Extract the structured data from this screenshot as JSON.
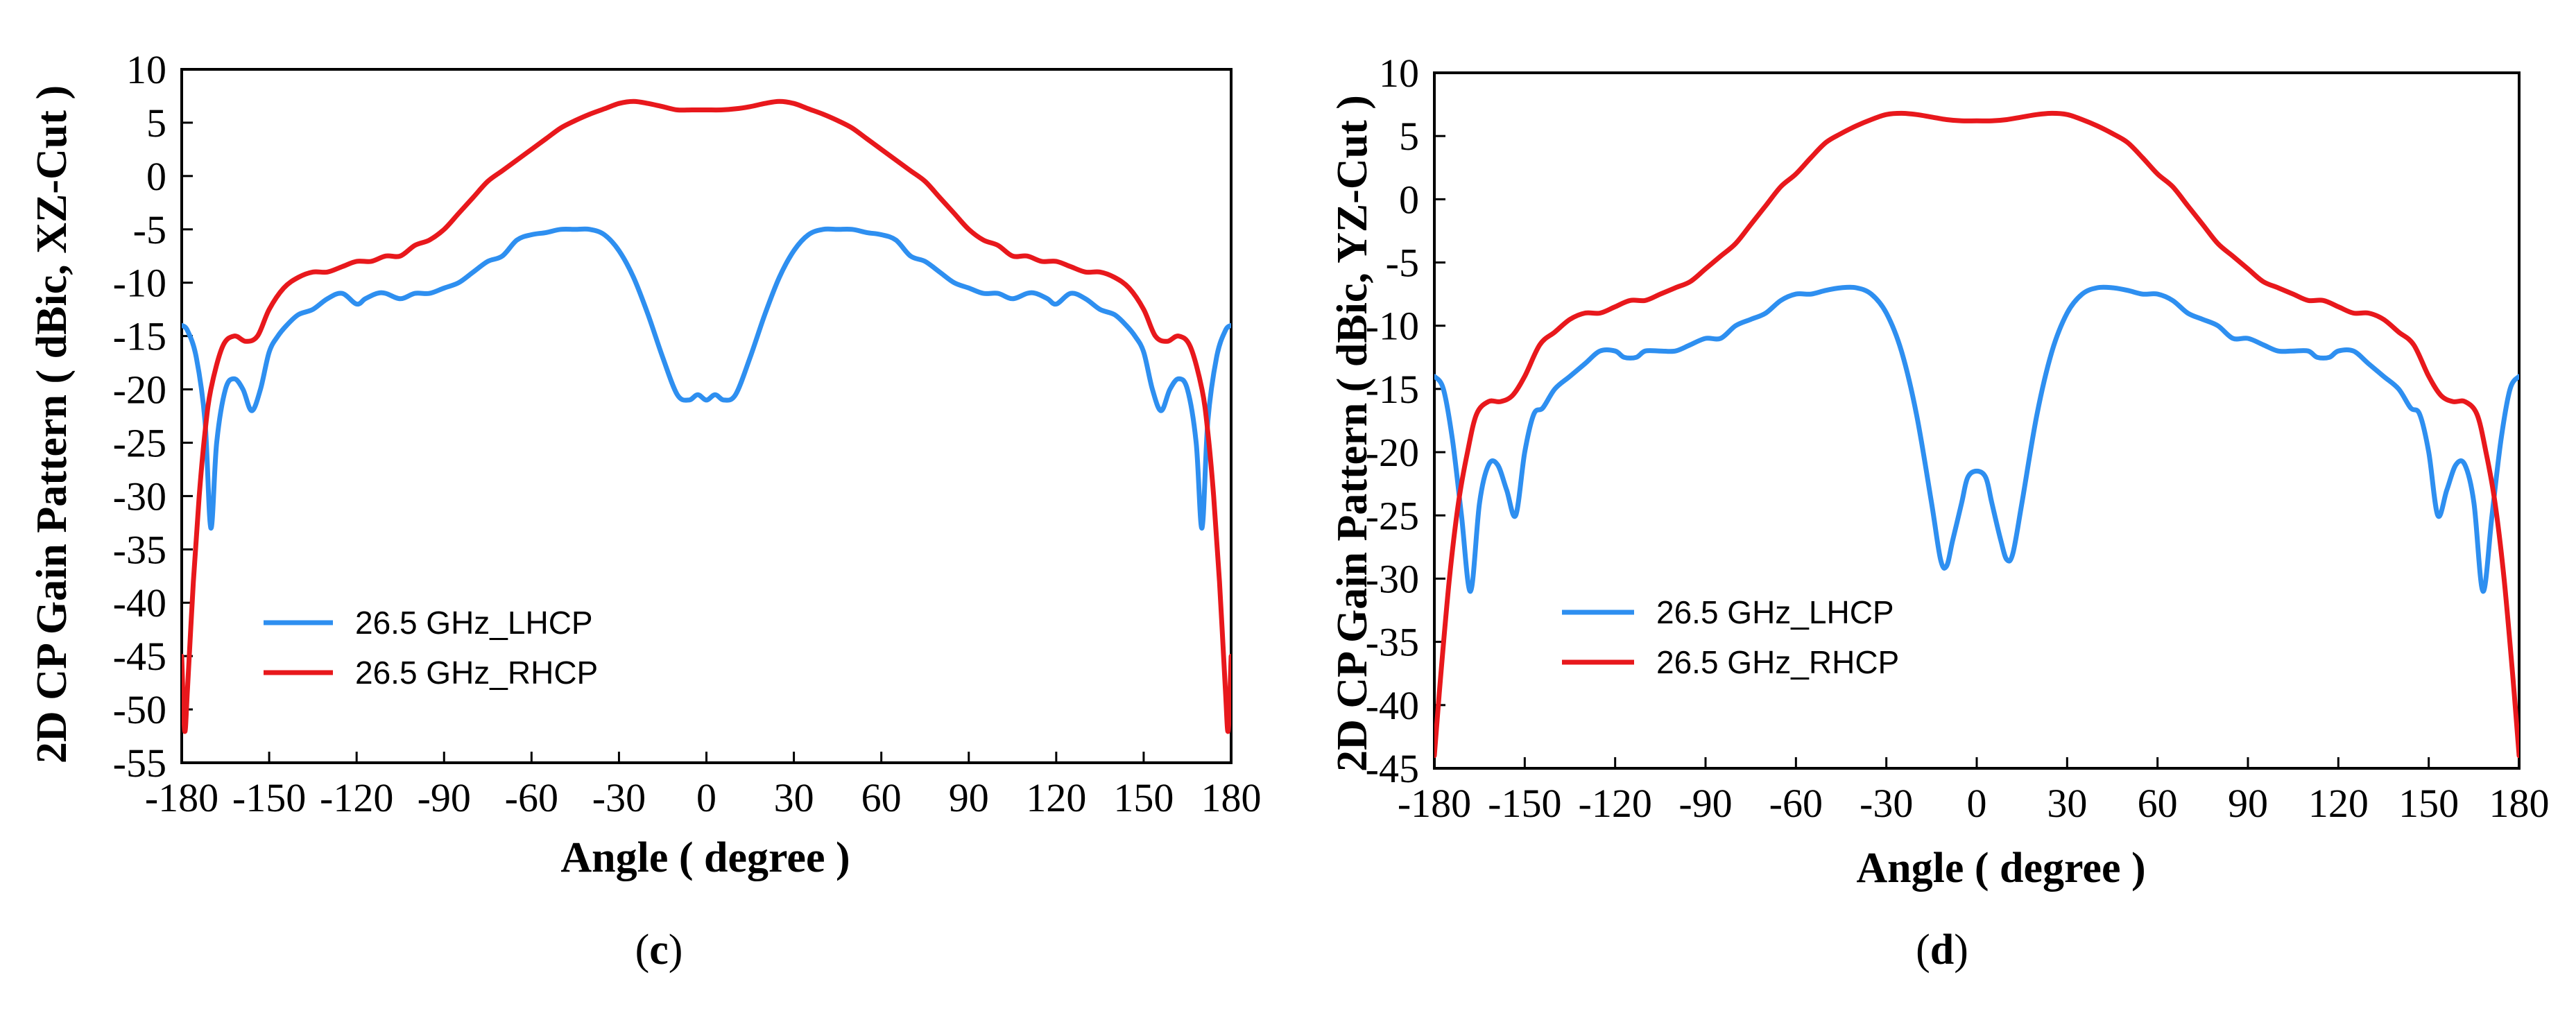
{
  "colors": {
    "lhcp": "#2e8ff0",
    "rhcp": "#e8181c",
    "axis": "#000000",
    "background": "#ffffff"
  },
  "chart_data": [
    {
      "type": "line",
      "panel_label_prefix": "(",
      "panel_label": "c",
      "panel_label_suffix": ")",
      "xlabel": "Angle ( degree )",
      "ylabel": "2D CP Gain Pattern ( dBic, XZ-Cut )",
      "xlim": [
        -180,
        180
      ],
      "ylim": [
        -55,
        10
      ],
      "xticks": [
        -180,
        -150,
        -120,
        -90,
        -60,
        -30,
        0,
        30,
        60,
        90,
        120,
        150,
        180
      ],
      "yticks": [
        10,
        5,
        0,
        -5,
        -10,
        -15,
        -20,
        -25,
        -30,
        -35,
        -40,
        -45,
        -50,
        -55
      ],
      "grid": false,
      "legend_position": "lower-left",
      "series": [
        {
          "name": "26.5 GHz_LHCP",
          "color_key": "lhcp",
          "x": [
            -180,
            -178,
            -175,
            -172,
            -170,
            -168,
            -165,
            -162,
            -159,
            -156,
            -153,
            -150,
            -147,
            -144,
            -140,
            -135,
            -130,
            -125,
            -120,
            -117,
            -113,
            -110,
            -105,
            -100,
            -95,
            -90,
            -85,
            -80,
            -75,
            -70,
            -65,
            -60,
            -55,
            -50,
            -45,
            -40,
            -35,
            -30,
            -25,
            -20,
            -15,
            -10,
            -6,
            -3,
            0,
            3,
            6,
            10,
            15,
            20,
            25,
            30,
            35,
            40,
            45,
            50,
            55,
            60,
            65,
            70,
            75,
            80,
            85,
            90,
            95,
            100,
            105,
            110,
            113,
            117,
            120,
            125,
            130,
            135,
            140,
            144,
            147,
            150,
            153,
            156,
            159,
            162,
            165,
            168,
            170,
            172,
            175,
            178,
            180
          ],
          "y": [
            -14,
            -14.5,
            -17,
            -23,
            -33,
            -25,
            -20,
            -19,
            -20,
            -22,
            -20,
            -16.5,
            -15,
            -14,
            -13,
            -12.5,
            -11.5,
            -11,
            -12,
            -11.5,
            -11,
            -11,
            -11.5,
            -11,
            -11,
            -10.5,
            -10,
            -9,
            -8,
            -7.5,
            -6,
            -5.5,
            -5.3,
            -5,
            -5,
            -5,
            -5.5,
            -7,
            -9.5,
            -13,
            -17,
            -20.5,
            -21,
            -20.5,
            -21,
            -20.5,
            -21,
            -20.5,
            -17,
            -13,
            -9.5,
            -7,
            -5.5,
            -5,
            -5,
            -5,
            -5.3,
            -5.5,
            -6,
            -7.5,
            -8,
            -9,
            -10,
            -10.5,
            -11,
            -11,
            -11.5,
            -11,
            -11,
            -11.5,
            -12,
            -11,
            -11.5,
            -12.5,
            -13,
            -14,
            -15,
            -16.5,
            -20,
            -22,
            -20,
            -19,
            -20,
            -25,
            -33,
            -23,
            -17,
            -14.5,
            -14
          ]
        },
        {
          "name": "26.5 GHz_RHCP",
          "color_key": "rhcp",
          "x": [
            -180,
            -179,
            -178,
            -176,
            -174,
            -172,
            -170,
            -166,
            -162,
            -158,
            -154,
            -150,
            -145,
            -140,
            -135,
            -130,
            -125,
            -120,
            -115,
            -110,
            -105,
            -100,
            -95,
            -90,
            -85,
            -80,
            -75,
            -70,
            -65,
            -60,
            -55,
            -50,
            -45,
            -40,
            -35,
            -30,
            -25,
            -20,
            -15,
            -10,
            -5,
            0,
            5,
            10,
            15,
            20,
            25,
            30,
            35,
            40,
            45,
            50,
            55,
            60,
            65,
            70,
            75,
            80,
            85,
            90,
            95,
            100,
            105,
            110,
            115,
            120,
            125,
            130,
            135,
            140,
            145,
            150,
            154,
            158,
            162,
            166,
            170,
            172,
            174,
            176,
            178,
            179,
            180
          ],
          "y": [
            -45,
            -52,
            -48,
            -38,
            -30,
            -24,
            -20,
            -16,
            -15,
            -15.5,
            -15,
            -12.5,
            -10.5,
            -9.5,
            -9,
            -9,
            -8.5,
            -8,
            -8,
            -7.5,
            -7.5,
            -6.5,
            -6,
            -5,
            -3.5,
            -2,
            -0.5,
            0.5,
            1.5,
            2.5,
            3.5,
            4.5,
            5.2,
            5.8,
            6.3,
            6.8,
            7,
            6.8,
            6.5,
            6.2,
            6.2,
            6.2,
            6.2,
            6.3,
            6.5,
            6.8,
            7,
            6.8,
            6.3,
            5.8,
            5.2,
            4.5,
            3.5,
            2.5,
            1.5,
            0.5,
            -0.5,
            -2,
            -3.5,
            -5,
            -6,
            -6.5,
            -7.5,
            -7.5,
            -8,
            -8,
            -8.5,
            -9,
            -9,
            -9.5,
            -10.5,
            -12.5,
            -15,
            -15.5,
            -15,
            -16,
            -20,
            -24,
            -30,
            -38,
            -48,
            -52,
            -45
          ]
        }
      ]
    },
    {
      "type": "line",
      "panel_label_prefix": "(",
      "panel_label": "d",
      "panel_label_suffix": ")",
      "xlabel": "Angle ( degree )",
      "ylabel": "2D CP Gain Pattern ( dBic, YZ-Cut )",
      "xlim": [
        -180,
        180
      ],
      "ylim": [
        -45,
        10
      ],
      "xticks": [
        -180,
        -150,
        -120,
        -90,
        -60,
        -30,
        0,
        30,
        60,
        90,
        120,
        150,
        180
      ],
      "yticks": [
        10,
        5,
        0,
        -5,
        -10,
        -15,
        -20,
        -25,
        -30,
        -35,
        -40,
        -45
      ],
      "grid": false,
      "legend_position": "lower-left",
      "series": [
        {
          "name": "26.5 GHz_LHCP",
          "color_key": "lhcp",
          "x": [
            -180,
            -177,
            -174,
            -171,
            -168,
            -165,
            -162,
            -159,
            -156,
            -153,
            -150,
            -147,
            -144,
            -140,
            -135,
            -130,
            -125,
            -120,
            -117,
            -113,
            -110,
            -105,
            -100,
            -95,
            -90,
            -85,
            -80,
            -75,
            -70,
            -65,
            -60,
            -55,
            -50,
            -45,
            -40,
            -35,
            -30,
            -25,
            -20,
            -15,
            -12,
            -10,
            -8,
            -5,
            -3,
            0,
            3,
            5,
            8,
            10,
            12,
            15,
            20,
            25,
            30,
            35,
            40,
            45,
            50,
            55,
            60,
            65,
            70,
            75,
            80,
            85,
            90,
            95,
            100,
            105,
            110,
            113,
            117,
            120,
            125,
            130,
            135,
            140,
            144,
            147,
            150,
            153,
            156,
            159,
            162,
            165,
            168,
            171,
            174,
            177,
            180
          ],
          "y": [
            -14,
            -15,
            -19,
            -25,
            -31,
            -24,
            -21,
            -21,
            -23,
            -25,
            -20,
            -17,
            -16.5,
            -15,
            -14,
            -13,
            -12,
            -12,
            -12.5,
            -12.5,
            -12,
            -12,
            -12,
            -11.5,
            -11,
            -11,
            -10,
            -9.5,
            -9,
            -8,
            -7.5,
            -7.5,
            -7.2,
            -7,
            -7,
            -7.5,
            -9,
            -12,
            -17,
            -24,
            -28.5,
            -29,
            -27,
            -24,
            -22,
            -21.5,
            -22,
            -24,
            -27,
            -28.5,
            -28,
            -24,
            -17,
            -12,
            -9,
            -7.5,
            -7,
            -7,
            -7.2,
            -7.5,
            -7.5,
            -8,
            -9,
            -9.5,
            -10,
            -11,
            -11,
            -11.5,
            -12,
            -12,
            -12,
            -12.5,
            -12.5,
            -12,
            -12,
            -13,
            -14,
            -15,
            -16.5,
            -17,
            -20,
            -25,
            -23,
            -21,
            -21,
            -24,
            -31,
            -25,
            -19,
            -15,
            -14
          ]
        },
        {
          "name": "26.5 GHz_RHCP",
          "color_key": "rhcp",
          "x": [
            -180,
            -178,
            -175,
            -172,
            -169,
            -166,
            -162,
            -158,
            -154,
            -150,
            -145,
            -140,
            -135,
            -130,
            -125,
            -120,
            -115,
            -110,
            -105,
            -100,
            -95,
            -90,
            -85,
            -80,
            -75,
            -70,
            -65,
            -60,
            -55,
            -50,
            -45,
            -40,
            -35,
            -30,
            -25,
            -20,
            -15,
            -10,
            -5,
            0,
            5,
            10,
            15,
            20,
            25,
            30,
            35,
            40,
            45,
            50,
            55,
            60,
            65,
            70,
            75,
            80,
            85,
            90,
            95,
            100,
            105,
            110,
            115,
            120,
            125,
            130,
            135,
            140,
            145,
            150,
            154,
            158,
            162,
            166,
            169,
            172,
            175,
            178,
            180
          ],
          "y": [
            -44,
            -38,
            -30,
            -24,
            -20,
            -17,
            -16,
            -16,
            -15.5,
            -14,
            -11.5,
            -10.5,
            -9.5,
            -9,
            -9,
            -8.5,
            -8,
            -8,
            -7.5,
            -7,
            -6.5,
            -5.5,
            -4.5,
            -3.5,
            -2,
            -0.5,
            1,
            2,
            3.3,
            4.5,
            5.2,
            5.8,
            6.3,
            6.7,
            6.8,
            6.7,
            6.5,
            6.3,
            6.2,
            6.2,
            6.2,
            6.3,
            6.5,
            6.7,
            6.8,
            6.7,
            6.3,
            5.8,
            5.2,
            4.5,
            3.3,
            2,
            1,
            -0.5,
            -2,
            -3.5,
            -4.5,
            -5.5,
            -6.5,
            -7,
            -7.5,
            -8,
            -8,
            -8.5,
            -9,
            -9,
            -9.5,
            -10.5,
            -11.5,
            -14,
            -15.5,
            -16,
            -16,
            -17,
            -20,
            -24,
            -30,
            -38,
            -44
          ]
        }
      ]
    }
  ]
}
